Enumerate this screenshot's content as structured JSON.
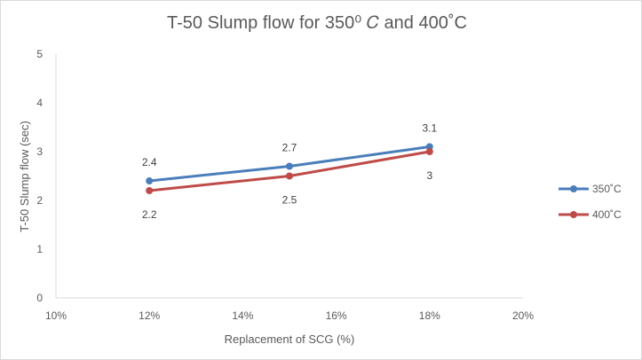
{
  "chart_data": {
    "type": "line",
    "title": "T-50 Slump flow for 350⁰ 𝐶 and 400˚C",
    "xlabel": "Replacement of SCG (%)",
    "ylabel": "T-50  Slump flow (sec)",
    "xlim": [
      10,
      20
    ],
    "ylim": [
      0,
      5
    ],
    "x_ticks": [
      "10%",
      "12%",
      "14%",
      "16%",
      "18%",
      "20%"
    ],
    "y_ticks": [
      "0",
      "1",
      "2",
      "3",
      "4",
      "5"
    ],
    "grid": false,
    "legend_position": "right",
    "x": [
      12,
      15,
      18
    ],
    "series": [
      {
        "name": "350˚C",
        "color": "#4a7ebb",
        "values": [
          2.4,
          2.7,
          3.1
        ],
        "labels": [
          "2.4",
          "2.7",
          "3.1"
        ],
        "label_side": "above"
      },
      {
        "name": "400˚C",
        "color": "#be4b48",
        "values": [
          2.2,
          2.5,
          3.0
        ],
        "labels": [
          "2.2",
          "2.5",
          "3"
        ],
        "label_side": "below"
      }
    ]
  }
}
